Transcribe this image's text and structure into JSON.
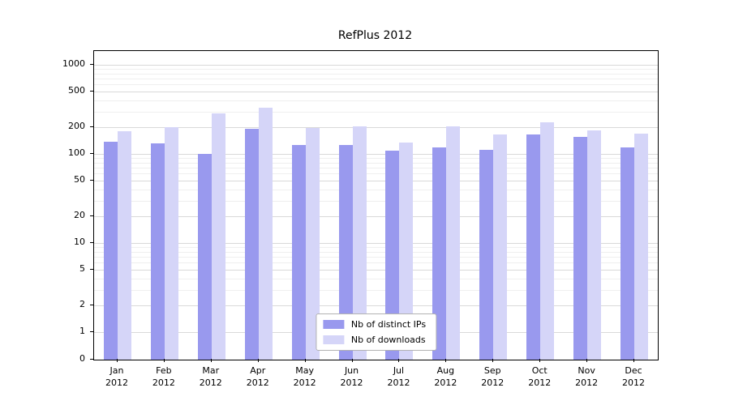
{
  "figure": {
    "background": "#ffffff"
  },
  "chart_data": {
    "type": "bar",
    "title": "RefPlus 2012",
    "categories": [
      "Jan 2012",
      "Feb 2012",
      "Mar 2012",
      "Apr 2012",
      "May 2012",
      "Jun 2012",
      "Jul 2012",
      "Aug 2012",
      "Sep 2012",
      "Oct 2012",
      "Nov 2012",
      "Dec 2012"
    ],
    "series": [
      {
        "name": "Nb of distinct IPs",
        "color": "#9999ee",
        "values": [
          138,
          132,
          100,
          193,
          125,
          126,
          108,
          119,
          110,
          165,
          155,
          118
        ]
      },
      {
        "name": "Nb of downloads",
        "color": "#d5d5f8",
        "values": [
          178,
          200,
          285,
          330,
          197,
          204,
          133,
          204,
          165,
          228,
          185,
          168
        ]
      }
    ],
    "xlabel": "",
    "ylabel": "",
    "yscale": "symlog",
    "yticks": [
      0,
      1,
      2,
      5,
      10,
      20,
      50,
      100,
      200,
      500,
      1000
    ],
    "y_minor_gridlines": [
      3,
      4,
      6,
      7,
      8,
      9,
      30,
      40,
      60,
      70,
      80,
      90,
      300,
      400,
      600,
      700,
      800,
      900
    ],
    "ylim": [
      0,
      1500
    ],
    "grid": true,
    "legend_position": "lower center"
  }
}
